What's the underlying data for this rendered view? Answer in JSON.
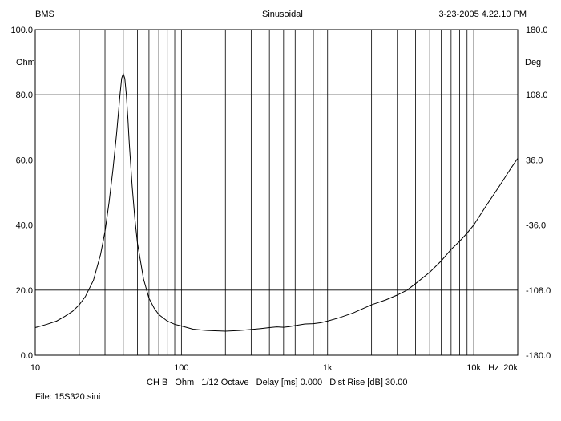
{
  "header": {
    "left": "BMS",
    "center": "Sinusoidal",
    "right": "3-23-2005 4.22.10 PM"
  },
  "footer": {
    "channel": "CH B",
    "unit": "Ohm",
    "smoothing": "1/12 Octave",
    "delay": "Delay [ms] 0.000",
    "dist_rise": "Dist Rise [dB] 30.00",
    "file": "File: 15S320.sini"
  },
  "chart_data": {
    "type": "line",
    "x_scale": "log",
    "xlim": [
      10,
      20000
    ],
    "x_ticks": [
      10,
      100,
      1000,
      10000,
      20000
    ],
    "x_tick_labels": [
      "10",
      "100",
      "1k",
      "10k",
      "20k"
    ],
    "x_unit_label": "Hz",
    "ylabel": "Ohm",
    "ylim": [
      0,
      100
    ],
    "y_ticks": [
      0,
      20,
      40,
      60,
      80,
      100
    ],
    "y_tick_labels": [
      "0.0",
      "20.0",
      "40.0",
      "60.0",
      "80.0",
      "100.0"
    ],
    "y2label": "Deg",
    "y2lim": [
      -180,
      180
    ],
    "y2_ticks": [
      -180,
      -108,
      -36,
      36,
      108,
      180
    ],
    "y2_tick_labels": [
      "-180.0",
      "-108.0",
      "-36.0",
      "36.0",
      "108.0",
      "180.0"
    ],
    "grid": true,
    "series": [
      {
        "x": [
          10,
          12,
          14,
          16,
          18,
          20,
          22,
          25,
          28,
          30,
          32,
          34,
          36,
          37,
          38,
          39,
          40,
          41,
          42,
          43,
          44,
          46,
          48,
          50,
          55,
          60,
          65,
          70,
          80,
          90,
          100,
          120,
          150,
          200,
          250,
          300,
          350,
          400,
          450,
          500,
          550,
          600,
          700,
          800,
          900,
          1000,
          1200,
          1500,
          2000,
          2500,
          3000,
          3500,
          4000,
          5000,
          6000,
          7000,
          8000,
          9000,
          10000,
          12000,
          15000,
          18000,
          20000
        ],
        "y": [
          8.5,
          9.5,
          10.5,
          12.0,
          13.5,
          15.5,
          18.0,
          23.0,
          31.0,
          38.0,
          47.0,
          57.0,
          68.0,
          74.0,
          80.0,
          85.0,
          86.5,
          85.0,
          80.0,
          73.0,
          65.0,
          52.0,
          42.0,
          34.5,
          23.5,
          17.5,
          14.5,
          12.5,
          10.5,
          9.5,
          9.0,
          8.0,
          7.6,
          7.4,
          7.6,
          7.9,
          8.2,
          8.5,
          8.7,
          8.6,
          8.8,
          9.1,
          9.6,
          9.7,
          10.0,
          10.5,
          11.5,
          13.0,
          15.5,
          17.0,
          18.5,
          20.0,
          22.0,
          25.5,
          29.0,
          32.5,
          35.0,
          37.5,
          40.0,
          45.5,
          52.0,
          57.5,
          60.5
        ]
      }
    ]
  }
}
